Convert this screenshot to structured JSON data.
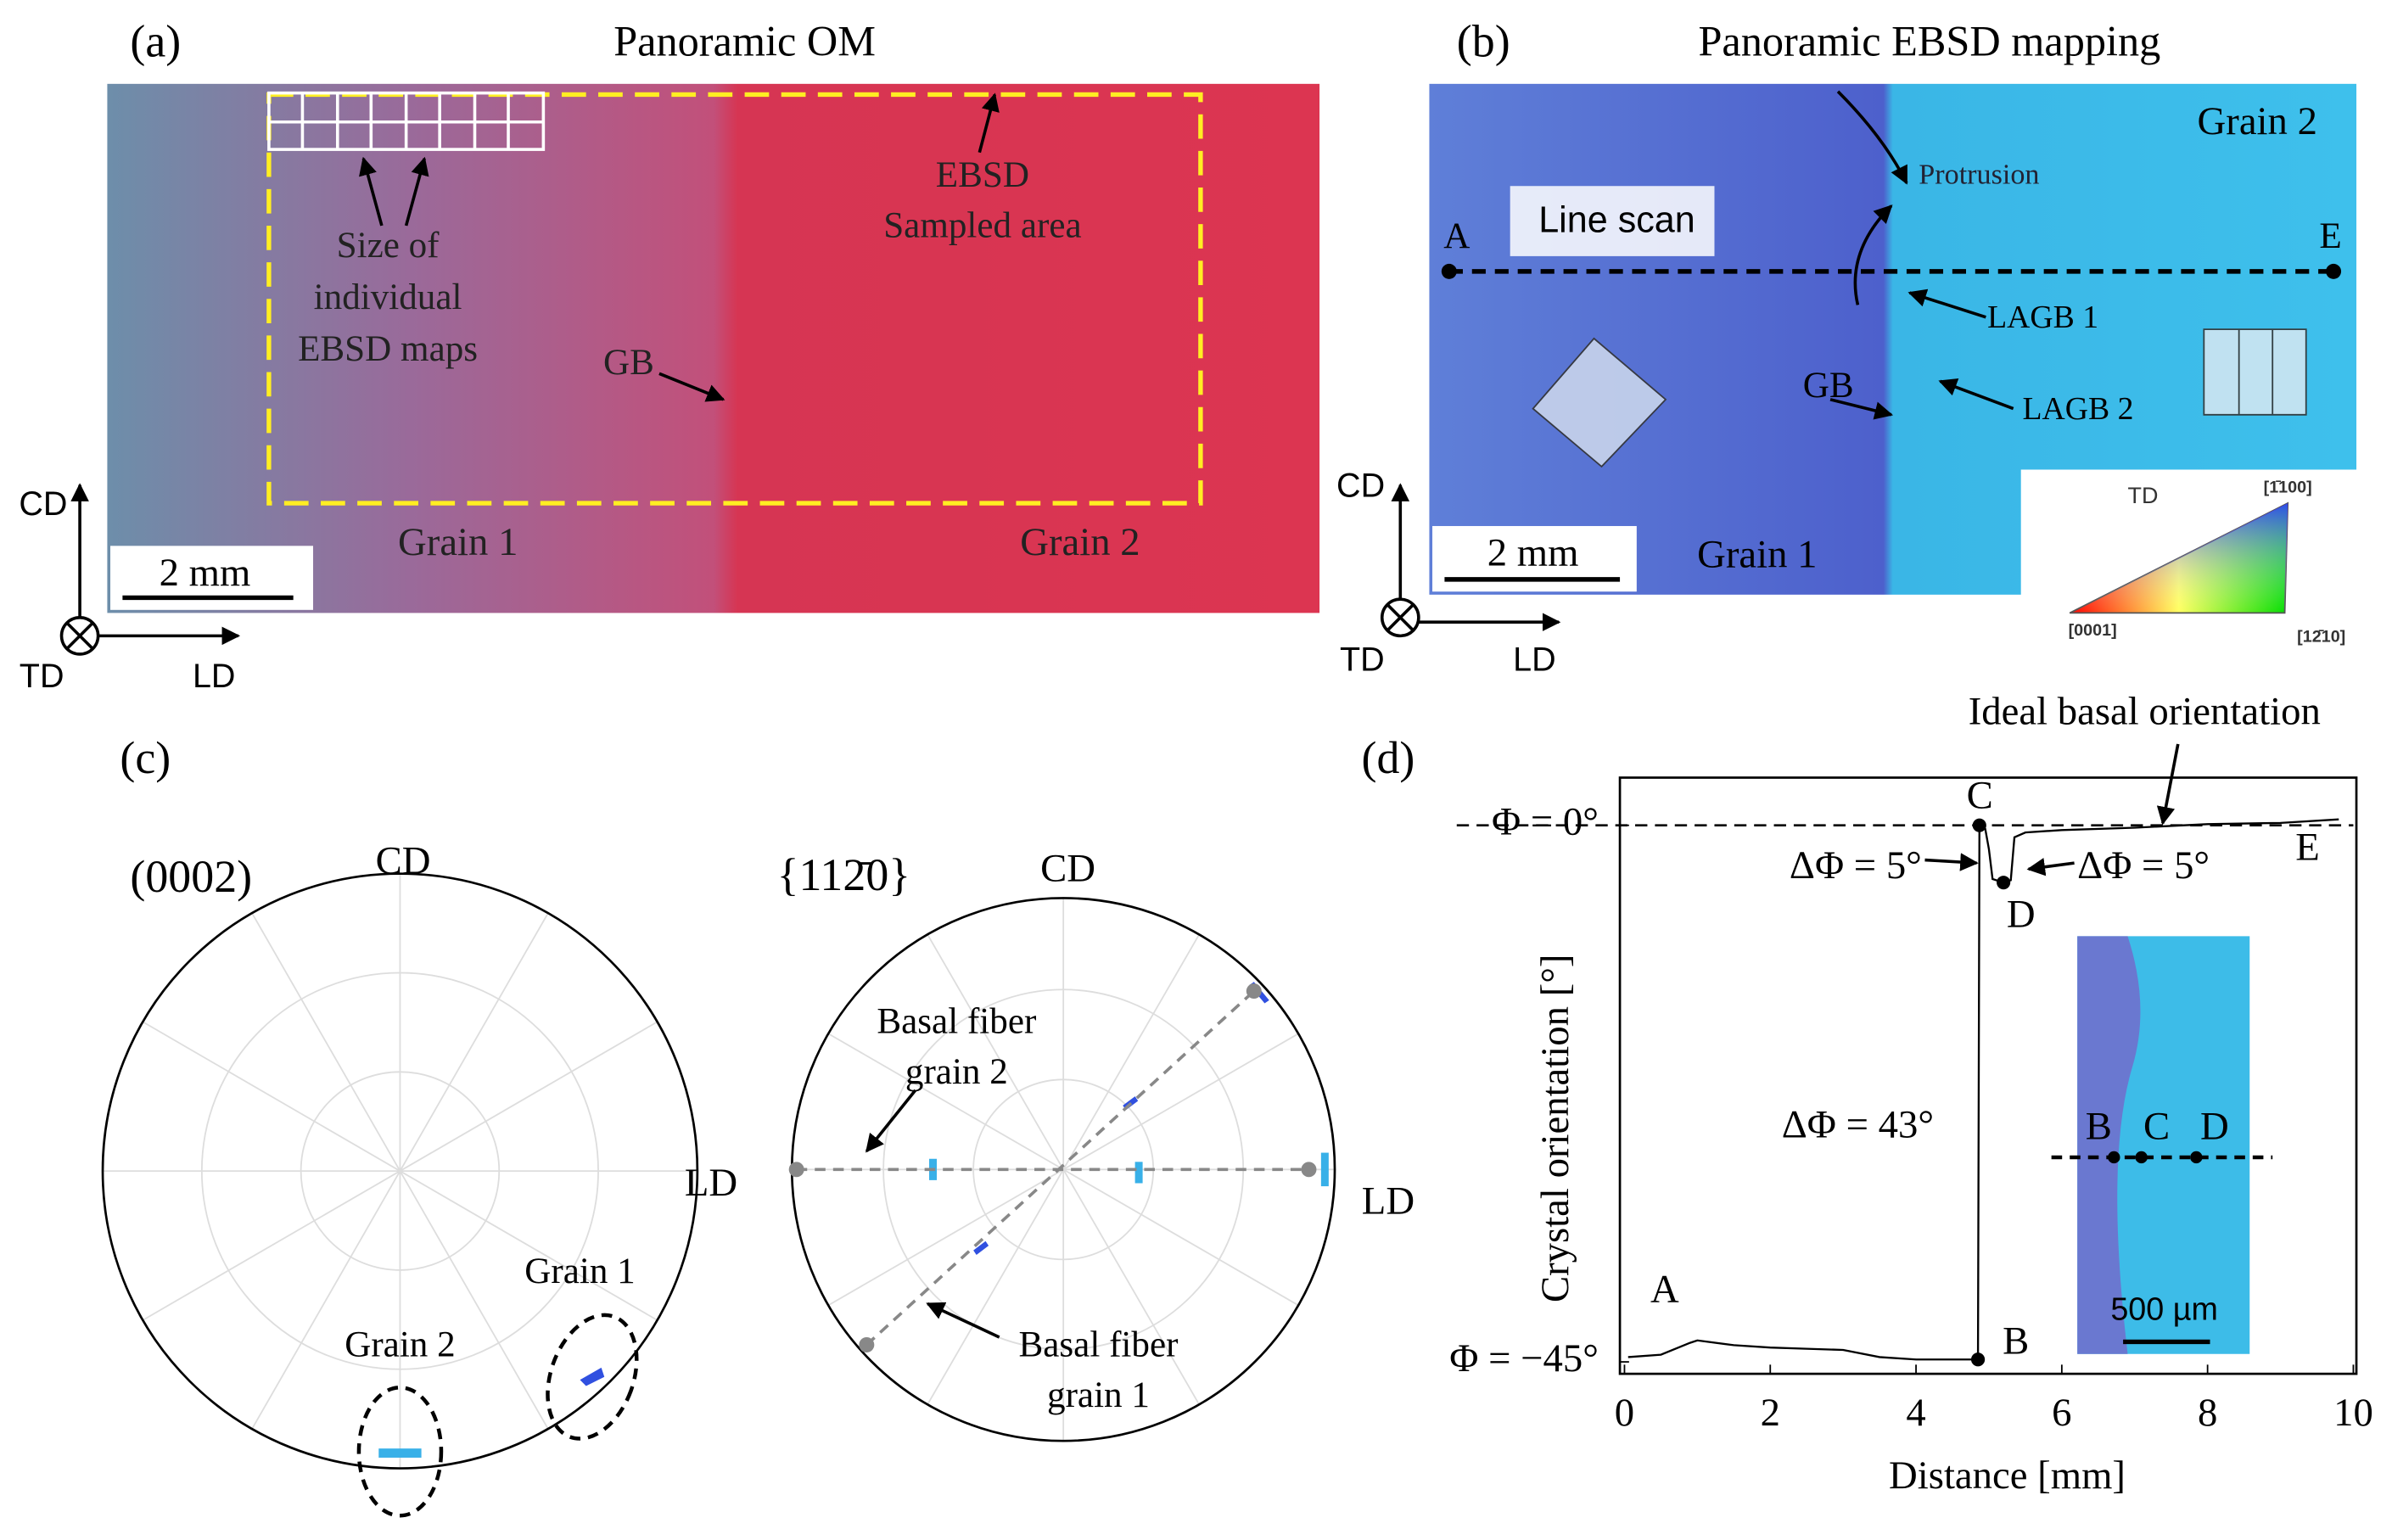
{
  "panel_a": {
    "label": "(a)",
    "title": "Panoramic OM",
    "annotations": [
      "Size of",
      "individual",
      "EBSD maps",
      "EBSD",
      "Sampled area",
      "GB",
      "Grain 1",
      "Grain 2",
      "2 mm"
    ],
    "axes": [
      "CD",
      "TD",
      "LD"
    ]
  },
  "panel_b": {
    "label": "(b)",
    "title": "Panoramic EBSD mapping",
    "annotations": [
      "Protrusion",
      "Grain 2",
      "A",
      "Line scan",
      "E",
      "LAGB 1",
      "GB",
      "LAGB 2",
      "2 mm",
      "Grain 1"
    ],
    "axes": [
      "CD",
      "TD",
      "LD"
    ],
    "legend": [
      "TD",
      "[1̄100]",
      "[0001]",
      "[12̄10]"
    ]
  },
  "panel_c": {
    "label": "(c)",
    "left": {
      "title": "(0002)",
      "annotations": [
        "CD",
        "LD",
        "Grain 1",
        "Grain 2"
      ]
    },
    "right": {
      "title": "{112̄0}",
      "annotations": [
        "CD",
        "LD",
        "Basal fiber",
        "grain 2",
        "Basal fiber",
        "grain 1"
      ]
    }
  },
  "chart_data": {
    "type": "line",
    "label": "(d)",
    "x_label": "Distance [mm]",
    "y_label": "Crystal orientation  [°]",
    "x": [
      0.05,
      0.5,
      0.9,
      1.0,
      1.5,
      2,
      2.5,
      3,
      3.5,
      4,
      4.5,
      4.85,
      4.87,
      4.95,
      5.0,
      5.05,
      5.2,
      5.3,
      5.35,
      5.5,
      6,
      7,
      8,
      9,
      9.8
    ],
    "series": [
      {
        "name": "Crystal orientation",
        "color": "#000000",
        "values": [
          -44.6,
          -44.4,
          -43.4,
          -43.2,
          -43.6,
          -43.8,
          -43.9,
          -44.0,
          -44.6,
          -44.8,
          -44.8,
          -44.8,
          0,
          -0.3,
          -2,
          -4.5,
          -4.8,
          -4.6,
          -1,
          -0.6,
          -0.4,
          -0.2,
          0.1,
          0.2,
          0.5
        ]
      }
    ],
    "xlim": [
      0,
      10
    ],
    "xticks": [
      0,
      2,
      4,
      6,
      8,
      10
    ],
    "ylim": [
      -46,
      4
    ],
    "yticks": [
      {
        "value": 0,
        "label": "Φ = 0°"
      },
      {
        "value": -45,
        "label": "Φ = −45°"
      }
    ],
    "annotations": [
      "A",
      "B",
      "C",
      "D",
      "E",
      "ΔΦ = 5°",
      "ΔΦ = 5°",
      "ΔΦ = 43°",
      "Ideal basal orientation"
    ],
    "inset": [
      "B",
      "C",
      "D",
      "500 µm"
    ]
  }
}
